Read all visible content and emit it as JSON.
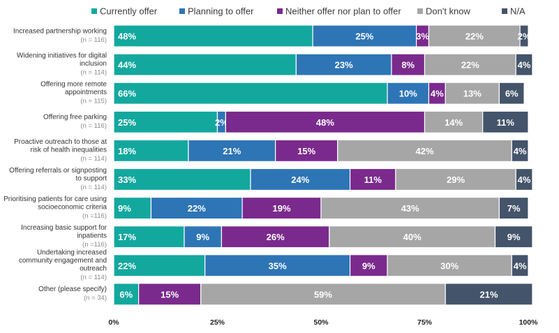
{
  "chart_data": {
    "type": "bar",
    "orientation": "horizontal",
    "stacked": true,
    "title": "",
    "xlabel": "",
    "ylabel": "",
    "xlim": [
      0,
      100
    ],
    "grid": false,
    "legend_position": "top",
    "x_ticks": [
      "0%",
      "25%",
      "50%",
      "75%",
      "100%"
    ],
    "categories": [
      {
        "label": [
          "Increased partnership working"
        ],
        "n": "(n = 116)"
      },
      {
        "label": [
          "Widening initiatives for digital",
          "inclusion"
        ],
        "n": "(n = 114)"
      },
      {
        "label": [
          "Offering more remote",
          "appointments"
        ],
        "n": "(n = 115)"
      },
      {
        "label": [
          "Offering free parking"
        ],
        "n": "(n = 116)"
      },
      {
        "label": [
          "Proactive outreach to those at",
          "risk of health inequalities"
        ],
        "n": "(n = 114)"
      },
      {
        "label": [
          "Offering referrals or signposting",
          "to support"
        ],
        "n": "(n = 114)"
      },
      {
        "label": [
          "Prioritising patients for care using",
          "socioeconomic criteria"
        ],
        "n": "(n =116)"
      },
      {
        "label": [
          "Increasing basic support for",
          "inpatients"
        ],
        "n": "(n =116)"
      },
      {
        "label": [
          "Undertaking increased",
          "community engagement and",
          "outreach"
        ],
        "n": "(n = 114)"
      },
      {
        "label": [
          "Other (please specify)"
        ],
        "n": "(n = 34)"
      }
    ],
    "series": [
      {
        "name": "Currently offer",
        "color": "#13a89e",
        "values": [
          48,
          44,
          66,
          25,
          18,
          33,
          9,
          17,
          22,
          6
        ]
      },
      {
        "name": "Planning to offer",
        "color": "#2e75b6",
        "values": [
          25,
          23,
          10,
          2,
          21,
          24,
          22,
          9,
          35,
          0
        ]
      },
      {
        "name": "Neither offer nor plan to offer",
        "color": "#7a2a8c",
        "values": [
          3,
          8,
          4,
          48,
          15,
          11,
          19,
          26,
          9,
          15
        ]
      },
      {
        "name": "Don't know",
        "color": "#a6a6a6",
        "values": [
          22,
          22,
          13,
          14,
          42,
          29,
          43,
          40,
          30,
          59
        ]
      },
      {
        "name": "N/A",
        "color": "#44546a",
        "values": [
          2,
          4,
          6,
          11,
          4,
          4,
          7,
          9,
          4,
          21
        ]
      }
    ]
  }
}
